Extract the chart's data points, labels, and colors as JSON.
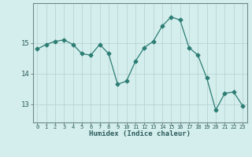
{
  "x": [
    0,
    1,
    2,
    3,
    4,
    5,
    6,
    7,
    8,
    9,
    10,
    11,
    12,
    13,
    14,
    15,
    16,
    17,
    18,
    19,
    20,
    21,
    22,
    23
  ],
  "y": [
    14.8,
    14.95,
    15.05,
    15.1,
    14.95,
    14.65,
    14.6,
    14.95,
    14.65,
    13.65,
    13.75,
    14.4,
    14.85,
    15.05,
    15.55,
    15.85,
    15.75,
    14.85,
    14.6,
    13.85,
    12.8,
    13.35,
    13.4,
    12.95
  ],
  "line_color": "#2d7d74",
  "marker": "D",
  "marker_size": 2.5,
  "bg_color": "#d4eeed",
  "grid_color": "#b8d4d2",
  "xlabel": "Humidex (Indice chaleur)",
  "yticks": [
    13,
    14,
    15
  ],
  "ylim": [
    12.4,
    16.3
  ],
  "xlim": [
    -0.5,
    23.5
  ]
}
